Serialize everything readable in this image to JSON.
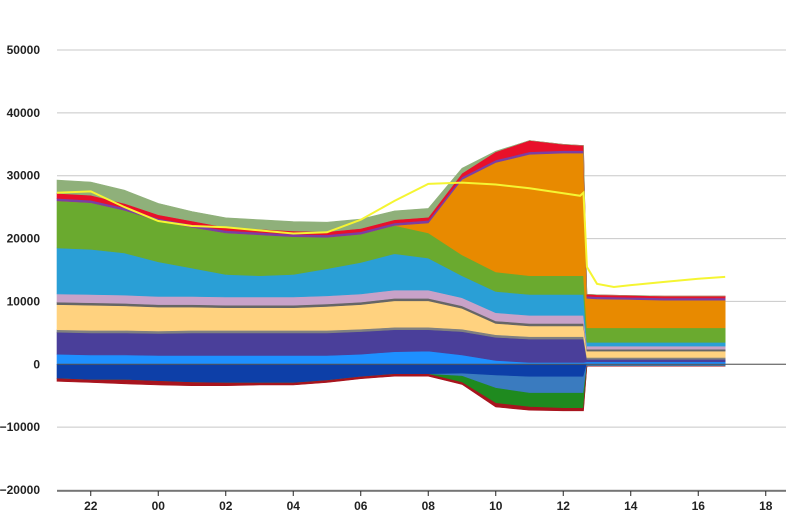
{
  "chart_data": {
    "type": "area",
    "stacked": true,
    "title": "",
    "xlabel": "",
    "ylabel": "",
    "ylim": [
      -20000,
      50000
    ],
    "xlim": [
      21,
      42.6
    ],
    "grid": "horizontal",
    "legend": "none",
    "x_tick_labels": [
      "22",
      "00",
      "02",
      "04",
      "06",
      "08",
      "10",
      "12",
      "14",
      "16",
      "18"
    ],
    "x_tick_values": [
      22,
      24,
      26,
      28,
      30,
      32,
      34,
      36,
      38,
      40,
      42
    ],
    "y_tick_labels": [
      "50000",
      "40000",
      "30000",
      "20000",
      "10000",
      "0",
      "−10000",
      "−20000"
    ],
    "y_tick_values": [
      50000,
      40000,
      30000,
      20000,
      10000,
      0,
      -10000,
      -20000
    ],
    "x": [
      21,
      22,
      23,
      24,
      25,
      26,
      27,
      28,
      29,
      30,
      31,
      32,
      33,
      34,
      35,
      36,
      36.6,
      36.7,
      37,
      38,
      39,
      40,
      40.8
    ],
    "series": [
      {
        "color": "#1e90ff",
        "values": [
          1600,
          1500,
          1500,
          1400,
          1400,
          1400,
          1400,
          1400,
          1400,
          1600,
          2000,
          2100,
          1500,
          600,
          300,
          300,
          300,
          400,
          400,
          400,
          400,
          400,
          400
        ]
      },
      {
        "color": "#4a3f9a",
        "values": [
          3500,
          3500,
          3500,
          3500,
          3600,
          3600,
          3600,
          3600,
          3600,
          3600,
          3500,
          3400,
          3700,
          3700,
          3700,
          3700,
          3700,
          400,
          400,
          400,
          400,
          400,
          400
        ]
      },
      {
        "color": "#808080",
        "values": [
          400,
          400,
          400,
          400,
          400,
          400,
          400,
          400,
          400,
          400,
          400,
          400,
          400,
          400,
          400,
          400,
          400,
          300,
          300,
          300,
          300,
          300,
          300
        ]
      },
      {
        "color": "#ffd27f",
        "values": [
          4000,
          4000,
          3900,
          3800,
          3700,
          3600,
          3600,
          3600,
          3800,
          3900,
          4200,
          4200,
          3300,
          1800,
          1700,
          1700,
          1700,
          1000,
          1000,
          1000,
          1000,
          1000,
          1000
        ]
      },
      {
        "color": "#666666",
        "values": [
          400,
          400,
          400,
          400,
          400,
          400,
          400,
          400,
          400,
          400,
          400,
          400,
          400,
          400,
          400,
          400,
          400,
          300,
          300,
          300,
          300,
          300,
          300
        ]
      },
      {
        "color": "#c8a2c8",
        "values": [
          1300,
          1300,
          1300,
          1300,
          1300,
          1300,
          1300,
          1300,
          1300,
          1300,
          1300,
          1300,
          1300,
          1300,
          1300,
          1300,
          1300,
          500,
          500,
          500,
          500,
          500,
          500
        ]
      },
      {
        "color": "#2a9fd6",
        "values": [
          7300,
          7200,
          6700,
          5500,
          4500,
          3600,
          3400,
          3600,
          4300,
          5000,
          5800,
          5100,
          3500,
          3400,
          3300,
          3300,
          3300,
          600,
          600,
          600,
          600,
          600,
          600
        ]
      },
      {
        "color": "#6aaa2f",
        "values": [
          7500,
          7400,
          6800,
          6500,
          6500,
          6600,
          6500,
          6000,
          5000,
          4500,
          4500,
          4000,
          3300,
          3100,
          3000,
          3000,
          3000,
          2300,
          2300,
          2300,
          2300,
          2300,
          2300
        ]
      },
      {
        "color": "#e88a00",
        "values": [
          0,
          0,
          0,
          0,
          0,
          0,
          0,
          0,
          0,
          0,
          0,
          1600,
          12000,
          17400,
          19300,
          19500,
          19500,
          4700,
          4600,
          4500,
          4400,
          4400,
          4400
        ]
      },
      {
        "color": "#7b3fa3",
        "values": [
          400,
          400,
          400,
          400,
          400,
          400,
          400,
          400,
          400,
          400,
          400,
          400,
          400,
          400,
          400,
          400,
          400,
          350,
          350,
          350,
          350,
          350,
          350
        ]
      },
      {
        "color": "#e8102a",
        "values": [
          800,
          800,
          700,
          600,
          600,
          500,
          500,
          500,
          500,
          500,
          500,
          500,
          600,
          1300,
          1800,
          1000,
          800,
          300,
          300,
          300,
          300,
          300,
          300
        ]
      },
      {
        "color": "#8fb07a",
        "values": [
          2100,
          2100,
          2100,
          1800,
          1500,
          1500,
          1500,
          1500,
          1500,
          1500,
          1400,
          1400,
          800,
          100,
          0,
          0,
          0,
          0,
          0,
          0,
          0,
          0,
          0
        ]
      }
    ],
    "negative_series": [
      {
        "color": "#0d3fa8",
        "values": [
          -2300,
          -2500,
          -2500,
          -2700,
          -2900,
          -3000,
          -3000,
          -3000,
          -2600,
          -2000,
          -1600,
          -1600,
          -1500,
          -1800,
          -2000,
          -2000,
          -2000,
          0,
          0,
          0,
          0,
          0,
          0
        ]
      },
      {
        "color": "#3a7bbf",
        "values": [
          0,
          0,
          0,
          0,
          0,
          0,
          0,
          0,
          0,
          0,
          0,
          0,
          -400,
          -2000,
          -2600,
          -2600,
          -2600,
          -300,
          -300,
          -300,
          -300,
          -300,
          -300
        ]
      },
      {
        "color": "#1f8a1f",
        "values": [
          0,
          0,
          0,
          0,
          0,
          0,
          0,
          0,
          0,
          0,
          0,
          0,
          -1000,
          -2400,
          -2200,
          -2400,
          -2400,
          0,
          0,
          0,
          0,
          0,
          0
        ]
      },
      {
        "color": "#a8141e",
        "values": [
          -400,
          -400,
          -600,
          -600,
          -500,
          -400,
          -300,
          -300,
          -300,
          -300,
          -300,
          -300,
          -300,
          -600,
          -500,
          -400,
          -400,
          0,
          0,
          0,
          0,
          0,
          0
        ]
      }
    ],
    "line_series": {
      "color": "#f5f532",
      "x": [
        21,
        22,
        23,
        24,
        25,
        26,
        27,
        28,
        29,
        30,
        31,
        32,
        33,
        34,
        35,
        36,
        36.5,
        36.6,
        36.7,
        37,
        37.5,
        38,
        39,
        40,
        40.8
      ],
      "values": [
        27300,
        27500,
        25000,
        22800,
        22000,
        21800,
        21300,
        20800,
        21000,
        23000,
        26000,
        28700,
        28900,
        28600,
        28000,
        27200,
        26800,
        27300,
        15500,
        12800,
        12300,
        12600,
        13100,
        13600,
        13900
      ]
    }
  }
}
